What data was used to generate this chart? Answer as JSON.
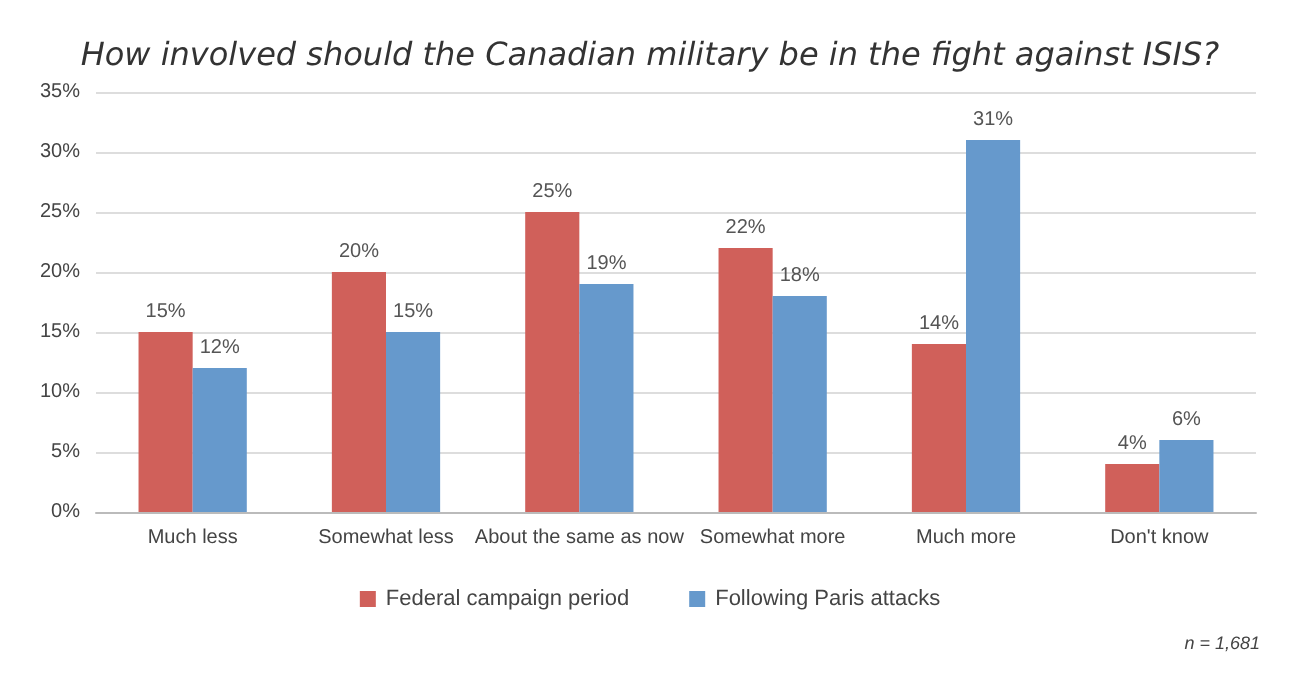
{
  "chart_data": {
    "type": "bar",
    "title": "How involved should the Canadian military be in the fight against ISIS?",
    "categories": [
      "Much less",
      "Somewhat less",
      "About the same as now",
      "Somewhat more",
      "Much more",
      "Don't know"
    ],
    "series": [
      {
        "name": "Federal campaign period",
        "color": "#d0605a",
        "values": [
          15,
          20,
          25,
          22,
          14,
          4
        ],
        "value_labels": [
          "15%",
          "20%",
          "25%",
          "22%",
          "14%",
          "4%"
        ]
      },
      {
        "name": "Following Paris attacks",
        "color": "#6699cc",
        "values": [
          12,
          15,
          19,
          18,
          31,
          6
        ],
        "value_labels": [
          "12%",
          "15%",
          "19%",
          "18%",
          "31%",
          "6%"
        ]
      }
    ],
    "ylim": [
      0,
      35
    ],
    "yticks": [
      {
        "value": 0,
        "label": "0%"
      },
      {
        "value": 5,
        "label": "5%"
      },
      {
        "value": 10,
        "label": "10%"
      },
      {
        "value": 15,
        "label": "15%"
      },
      {
        "value": 20,
        "label": "20%"
      },
      {
        "value": 25,
        "label": "25%"
      },
      {
        "value": 30,
        "label": "30%"
      },
      {
        "value": 35,
        "label": "35%"
      }
    ],
    "grid": "y",
    "legend": "bottom",
    "annotations": [
      "n = 1,681"
    ]
  }
}
